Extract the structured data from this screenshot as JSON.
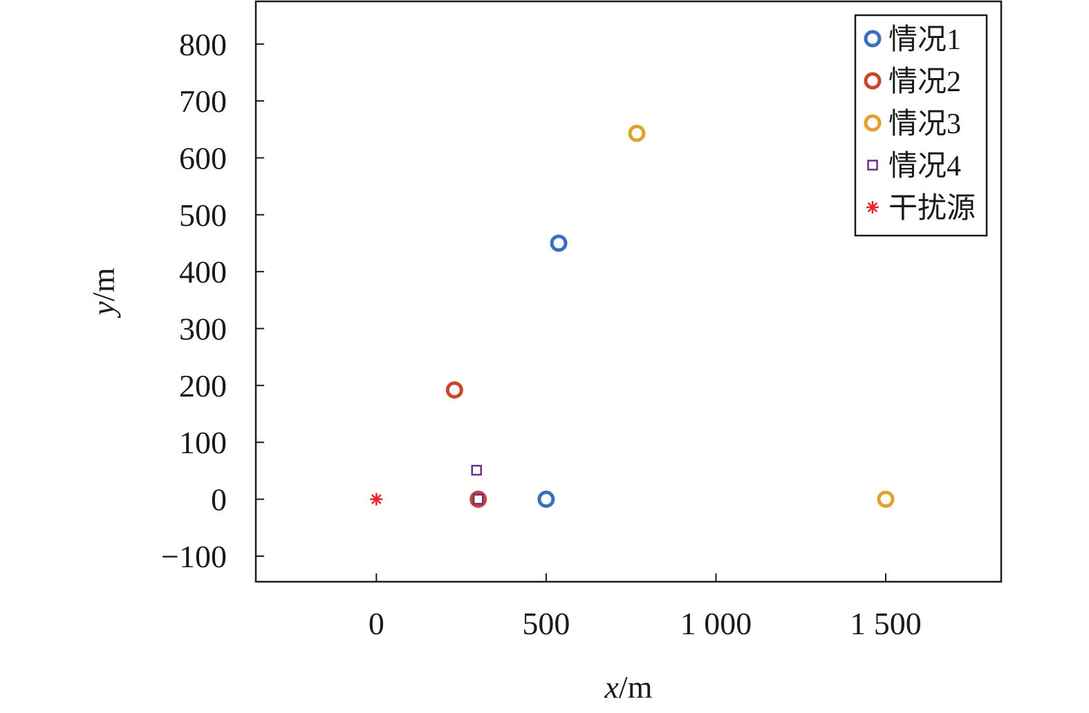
{
  "chart_data": {
    "type": "scatter",
    "xlabel": "x/m",
    "xlabel_var": "x",
    "xlabel_unit": "/m",
    "ylabel": "y/m",
    "ylabel_var": "y",
    "ylabel_unit": "/m",
    "xlim": [
      -355,
      1840
    ],
    "ylim": [
      -145,
      875
    ],
    "xticks": [
      0,
      500,
      1000,
      1500
    ],
    "xtick_labels": [
      "0",
      "500",
      "1 000",
      "1 500"
    ],
    "yticks": [
      -100,
      0,
      100,
      200,
      300,
      400,
      500,
      600,
      700,
      800
    ],
    "ytick_labels": [
      "−100",
      "0",
      "100",
      "200",
      "300",
      "400",
      "500",
      "600",
      "700",
      "800"
    ],
    "grid": false,
    "legend_position": "top-right",
    "series": [
      {
        "name": "情况1",
        "marker": "circle",
        "color": "#3a6fbe",
        "points": [
          [
            500,
            0
          ],
          [
            537,
            450
          ]
        ]
      },
      {
        "name": "情况2",
        "marker": "circle",
        "color": "#c8462a",
        "points": [
          [
            300,
            0
          ],
          [
            230,
            192
          ]
        ]
      },
      {
        "name": "情况3",
        "marker": "circle",
        "color": "#e0a12e",
        "points": [
          [
            1500,
            0
          ],
          [
            767,
            643
          ]
        ]
      },
      {
        "name": "情况4",
        "marker": "square",
        "color": "#6a2f8f",
        "points": [
          [
            300,
            0
          ],
          [
            295,
            51
          ]
        ]
      },
      {
        "name": "干扰源",
        "marker": "asterisk",
        "color": "#e8242c",
        "points": [
          [
            0,
            0
          ]
        ]
      }
    ]
  }
}
